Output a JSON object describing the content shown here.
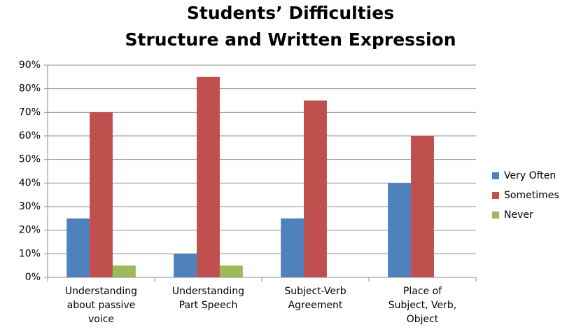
{
  "chart_data": {
    "type": "bar",
    "title": [
      "Students’ Difficulties",
      "Structure and Written Expression"
    ],
    "categories": [
      [
        "Understanding",
        "about passive",
        "voice"
      ],
      [
        "Understanding",
        "Part Speech"
      ],
      [
        "Subject-Verb",
        "Agreement"
      ],
      [
        "Place of",
        "Subject, Verb,",
        "Object"
      ]
    ],
    "series": [
      {
        "name": "Very Often",
        "color": "#4f81bd",
        "values": [
          25,
          10,
          25,
          40
        ]
      },
      {
        "name": "Sometimes",
        "color": "#c0504d",
        "values": [
          70,
          85,
          75,
          60
        ]
      },
      {
        "name": "Never",
        "color": "#9bbb59",
        "values": [
          5,
          5,
          0,
          0
        ]
      }
    ],
    "ylim": [
      0,
      90
    ],
    "yticks": [
      {
        "value": 0,
        "label": "0%"
      },
      {
        "value": 10,
        "label": "10%"
      },
      {
        "value": 20,
        "label": "20%"
      },
      {
        "value": 30,
        "label": "30%"
      },
      {
        "value": 40,
        "label": "40%"
      },
      {
        "value": 50,
        "label": "50%"
      },
      {
        "value": 60,
        "label": "60%"
      },
      {
        "value": 70,
        "label": "70%"
      },
      {
        "value": 80,
        "label": "80%"
      },
      {
        "value": 90,
        "label": "90%"
      }
    ],
    "grid": true,
    "legend": "right"
  }
}
